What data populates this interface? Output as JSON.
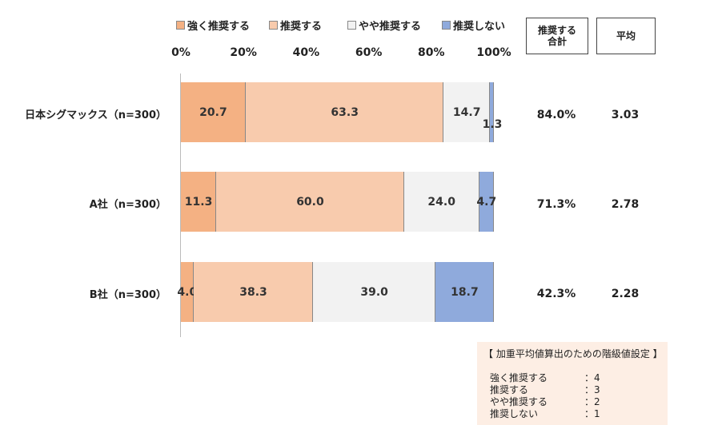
{
  "chart_data": {
    "type": "bar",
    "orientation": "horizontal-stacked-100",
    "categories": [
      "日本シグマックス（n=300）",
      "A社（n=300）",
      "B社（n=300）"
    ],
    "series": [
      {
        "name": "強く推奨する",
        "color": "#f4b183",
        "values": [
          20.7,
          11.3,
          4.0
        ],
        "labels": [
          "20.7",
          "11.3",
          "4.0"
        ]
      },
      {
        "name": "推奨する",
        "color": "#f8cbad",
        "values": [
          63.3,
          60.0,
          38.3
        ],
        "labels": [
          "63.3",
          "60.0",
          "38.3"
        ]
      },
      {
        "name": "やや推奨する",
        "color": "#f2f2f2",
        "values": [
          14.7,
          24.0,
          39.0
        ],
        "labels": [
          "14.7",
          "24.0",
          "39.0"
        ]
      },
      {
        "name": "推奨しない",
        "color": "#8faadc",
        "values": [
          1.3,
          4.7,
          18.7
        ],
        "labels": [
          "1.3",
          "4.7",
          "18.7"
        ]
      }
    ],
    "xlim": [
      0,
      100
    ],
    "xticks": [
      "0%",
      "20%",
      "40%",
      "60%",
      "80%",
      "100%"
    ],
    "legend_position": "top",
    "grid": false
  },
  "headers": {
    "total_line1": "推奨する",
    "total_line2": "合計",
    "average": "平均"
  },
  "stats": [
    {
      "total": "84.0%",
      "average": "3.03"
    },
    {
      "total": "71.3%",
      "average": "2.78"
    },
    {
      "total": "42.3%",
      "average": "2.28"
    }
  ],
  "note": {
    "title": "【 加重平均値算出のための階級値設定 】",
    "rows": [
      {
        "label": "強く推奨する",
        "value": "：4"
      },
      {
        "label": "推奨する",
        "value": "：3"
      },
      {
        "label": "やや推奨する",
        "value": "：2"
      },
      {
        "label": "推奨しない",
        "value": "：1"
      }
    ]
  }
}
